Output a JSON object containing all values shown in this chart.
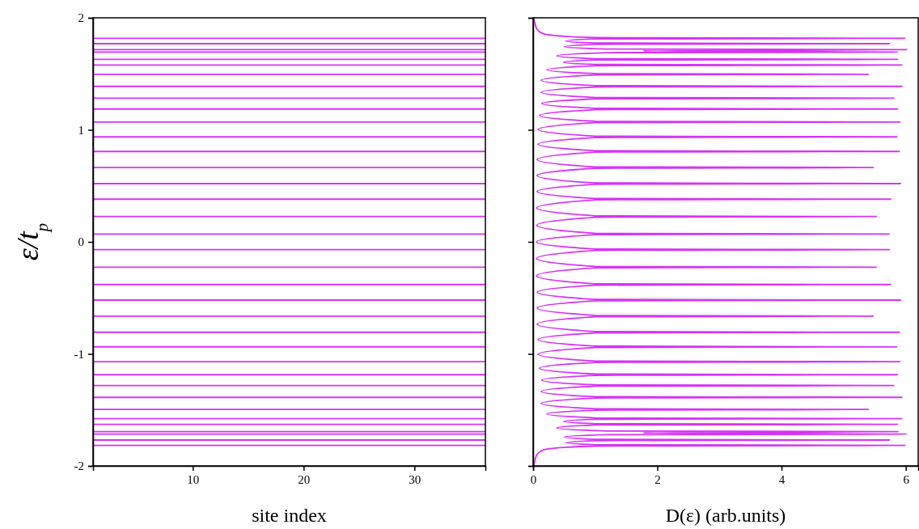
{
  "chart_data": [
    {
      "type": "line",
      "xlabel": "site index",
      "ylabel": "ε/t$_{p}$",
      "xlim": [
        1,
        36.4
      ],
      "xticks": [
        10,
        20,
        30
      ],
      "ylim": [
        -2,
        2
      ],
      "yticks": [
        -2,
        -1,
        0,
        1,
        2
      ],
      "ref_lines": [
        {
          "axis": "y",
          "value": -1.817,
          "color": "#d633f5"
        },
        {
          "axis": "y",
          "value": -1.769,
          "color": "#d633f5"
        },
        {
          "axis": "y",
          "value": -1.716,
          "color": "#d633f5"
        },
        {
          "axis": "y",
          "value": -1.694,
          "color": "#d633f5"
        },
        {
          "axis": "y",
          "value": -1.629,
          "color": "#d633f5"
        },
        {
          "axis": "y",
          "value": -1.578,
          "color": "#d633f5"
        },
        {
          "axis": "y",
          "value": -1.496,
          "color": "#d633f5"
        },
        {
          "axis": "y",
          "value": -1.388,
          "color": "#d633f5"
        },
        {
          "axis": "y",
          "value": -1.282,
          "color": "#d633f5"
        },
        {
          "axis": "y",
          "value": -1.186,
          "color": "#d633f5"
        },
        {
          "axis": "y",
          "value": -1.07,
          "color": "#d633f5"
        },
        {
          "axis": "y",
          "value": -0.937,
          "color": "#d633f5"
        },
        {
          "axis": "y",
          "value": -0.807,
          "color": "#d633f5"
        },
        {
          "axis": "y",
          "value": -0.663,
          "color": "#d633f5"
        },
        {
          "axis": "y",
          "value": -0.52,
          "color": "#d633f5"
        },
        {
          "axis": "y",
          "value": -0.381,
          "color": "#d633f5"
        },
        {
          "axis": "y",
          "value": -0.226,
          "color": "#d633f5"
        },
        {
          "axis": "y",
          "value": -0.07,
          "color": "#d633f5"
        },
        {
          "axis": "y",
          "value": 0.07,
          "color": "#d633f5"
        },
        {
          "axis": "y",
          "value": 0.226,
          "color": "#d633f5"
        },
        {
          "axis": "y",
          "value": 0.381,
          "color": "#d633f5"
        },
        {
          "axis": "y",
          "value": 0.52,
          "color": "#d633f5"
        },
        {
          "axis": "y",
          "value": 0.663,
          "color": "#d633f5"
        },
        {
          "axis": "y",
          "value": 0.807,
          "color": "#d633f5"
        },
        {
          "axis": "y",
          "value": 0.937,
          "color": "#d633f5"
        },
        {
          "axis": "y",
          "value": 1.07,
          "color": "#d633f5"
        },
        {
          "axis": "y",
          "value": 1.186,
          "color": "#d633f5"
        },
        {
          "axis": "y",
          "value": 1.282,
          "color": "#d633f5"
        },
        {
          "axis": "y",
          "value": 1.388,
          "color": "#d633f5"
        },
        {
          "axis": "y",
          "value": 1.496,
          "color": "#d633f5"
        },
        {
          "axis": "y",
          "value": 1.578,
          "color": "#d633f5"
        },
        {
          "axis": "y",
          "value": 1.629,
          "color": "#d633f5"
        },
        {
          "axis": "y",
          "value": 1.694,
          "color": "#d633f5"
        },
        {
          "axis": "y",
          "value": 1.716,
          "color": "#d633f5"
        },
        {
          "axis": "y",
          "value": 1.769,
          "color": "#d633f5"
        },
        {
          "axis": "y",
          "value": 1.817,
          "color": "#d633f5"
        }
      ]
    },
    {
      "type": "line",
      "xlabel": "D(ε) (arb.units)",
      "xlim": [
        0,
        6.2
      ],
      "xticks": [
        0,
        2,
        4,
        6
      ],
      "ylim": [
        -2,
        2
      ],
      "yticks": [
        -2,
        -1,
        0,
        1,
        2
      ],
      "tick_labels": "x",
      "series": [
        {
          "color": "#d633f5",
          "x": [
            0.01,
            0.03,
            0.06,
            0.15,
            0.5,
            1.0,
            5.99,
            1.0,
            0.53,
            1.0,
            5.74,
            1.0,
            0.5,
            1.2,
            6.02,
            1.77,
            5.88,
            1.2,
            0.38,
            1.0,
            5.87,
            1.0,
            0.49,
            1.0,
            5.94,
            1.0,
            0.22,
            1.0,
            5.4,
            1.0,
            0.13,
            1.0,
            5.94,
            1.0,
            0.13,
            1.0,
            5.81,
            1.0,
            0.14,
            1.0,
            5.87,
            1.0,
            0.1,
            1.0,
            5.91,
            1.0,
            0.08,
            1.0,
            5.86,
            1.0,
            0.08,
            1.0,
            5.9,
            1.0,
            0.065,
            1.0,
            5.48,
            1.0,
            0.065,
            1.0,
            5.92,
            1.0,
            0.065,
            1.0,
            5.76,
            1.0,
            0.056,
            1.0,
            5.53,
            1.0,
            0.056,
            1.0,
            5.74,
            1.0,
            0.056,
            1.0,
            5.74,
            1.0,
            0.056,
            1.0,
            5.53,
            1.0,
            0.056,
            1.0,
            5.76,
            1.0,
            0.065,
            1.0,
            5.92,
            1.0,
            0.065,
            1.0,
            5.48,
            1.0,
            0.065,
            1.0,
            5.9,
            1.0,
            0.08,
            1.0,
            5.86,
            1.0,
            0.08,
            1.0,
            5.91,
            1.0,
            0.1,
            1.0,
            5.87,
            1.0,
            0.14,
            1.0,
            5.81,
            1.0,
            0.13,
            1.0,
            5.94,
            1.0,
            0.13,
            1.0,
            5.4,
            1.0,
            0.22,
            1.0,
            5.94,
            1.0,
            0.49,
            1.0,
            5.87,
            1.0,
            0.38,
            1.2,
            5.88,
            1.77,
            6.02,
            1.2,
            0.5,
            1.0,
            5.74,
            1.0,
            0.53,
            1.0,
            5.99,
            1.0,
            0.5,
            0.15,
            0.06,
            0.03,
            0.01
          ],
          "values": [
            -2,
            -1.95,
            -1.9,
            -1.86,
            -1.835,
            -1.823,
            -1.817,
            -1.811,
            -1.793,
            -1.775,
            -1.769,
            -1.763,
            -1.742,
            -1.721,
            -1.716,
            -1.705,
            -1.694,
            -1.689,
            -1.661,
            -1.635,
            -1.629,
            -1.623,
            -1.603,
            -1.584,
            -1.578,
            -1.572,
            -1.537,
            -1.502,
            -1.496,
            -1.49,
            -1.442,
            -1.394,
            -1.388,
            -1.382,
            -1.335,
            -1.288,
            -1.282,
            -1.276,
            -1.234,
            -1.192,
            -1.186,
            -1.18,
            -1.128,
            -1.076,
            -1.07,
            -1.064,
            -1.003,
            -0.943,
            -0.937,
            -0.931,
            -0.872,
            -0.813,
            -0.807,
            -0.801,
            -0.735,
            -0.669,
            -0.663,
            -0.657,
            -0.591,
            -0.526,
            -0.52,
            -0.514,
            -0.45,
            -0.387,
            -0.381,
            -0.375,
            -0.303,
            -0.232,
            -0.226,
            -0.22,
            -0.148,
            -0.076,
            -0.07,
            -0.064,
            0,
            0.064,
            0.07,
            0.076,
            0.148,
            0.22,
            0.226,
            0.232,
            0.303,
            0.375,
            0.381,
            0.387,
            0.45,
            0.514,
            0.52,
            0.526,
            0.591,
            0.657,
            0.663,
            0.669,
            0.735,
            0.801,
            0.807,
            0.813,
            0.872,
            0.931,
            0.937,
            0.943,
            1.003,
            1.064,
            1.07,
            1.076,
            1.128,
            1.18,
            1.186,
            1.192,
            1.234,
            1.276,
            1.282,
            1.288,
            1.335,
            1.382,
            1.388,
            1.394,
            1.442,
            1.49,
            1.496,
            1.502,
            1.537,
            1.572,
            1.578,
            1.584,
            1.603,
            1.623,
            1.629,
            1.635,
            1.661,
            1.689,
            1.694,
            1.705,
            1.716,
            1.721,
            1.742,
            1.763,
            1.769,
            1.775,
            1.793,
            1.811,
            1.817,
            1.823,
            1.835,
            1.86,
            1.9,
            1.95,
            2
          ]
        }
      ]
    }
  ]
}
